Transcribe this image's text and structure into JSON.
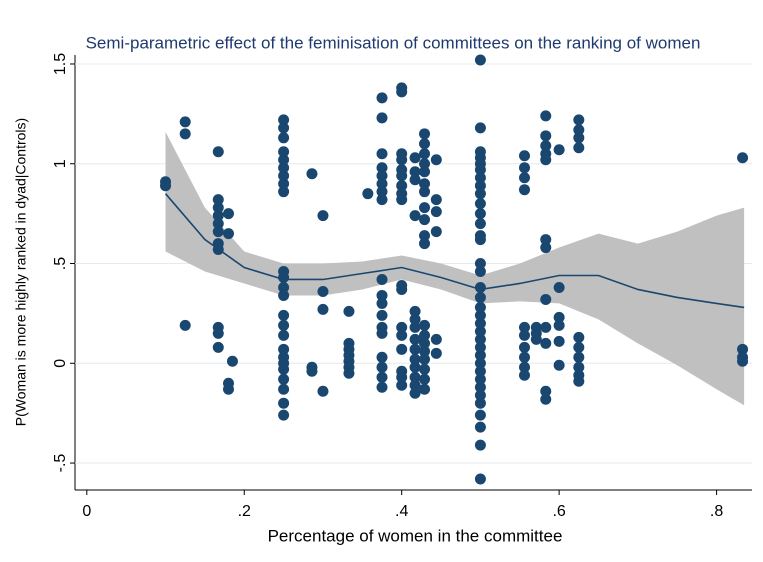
{
  "chart_data": {
    "type": "scatter",
    "title": "Semi-parametric effect of the feminisation of committees on the ranking of women",
    "xlabel": "Percentage of women in the committee",
    "ylabel": "P(Woman is more highly ranked in dyad|Controls)",
    "xlim": [
      -0.015,
      0.845
    ],
    "ylim": [
      -0.635,
      1.545
    ],
    "xticks": [
      {
        "value": 0,
        "label": "0"
      },
      {
        "value": 0.2,
        "label": ".2"
      },
      {
        "value": 0.4,
        "label": ".4"
      },
      {
        "value": 0.6,
        "label": ".6"
      },
      {
        "value": 0.8,
        "label": ".8"
      }
    ],
    "yticks": [
      {
        "value": -0.5,
        "label": "-.5"
      },
      0,
      {
        "value": 0.5,
        "label": ".5"
      },
      1,
      1.5
    ],
    "grid": true,
    "series": [
      {
        "color": "#1a476f",
        "x": [
          0.1,
          0.1,
          0.125,
          0.125,
          0.125,
          0.167,
          0.167,
          0.167,
          0.167,
          0.167,
          0.167,
          0.167,
          0.167,
          0.167,
          0.167,
          0.167,
          0.18,
          0.18,
          0.18,
          0.18,
          0.185,
          0.25,
          0.25,
          0.25,
          0.25,
          0.25,
          0.25,
          0.25,
          0.25,
          0.25,
          0.25,
          0.25,
          0.25,
          0.25,
          0.25,
          0.25,
          0.25,
          0.25,
          0.25,
          0.25,
          0.25,
          0.25,
          0.25,
          0.25,
          0.25,
          0.286,
          0.286,
          0.286,
          0.3,
          0.3,
          0.3,
          0.3,
          0.333,
          0.333,
          0.333,
          0.333,
          0.333,
          0.333,
          0.333,
          0.357,
          0.375,
          0.375,
          0.375,
          0.375,
          0.375,
          0.375,
          0.375,
          0.375,
          0.375,
          0.375,
          0.375,
          0.375,
          0.375,
          0.375,
          0.375,
          0.375,
          0.375,
          0.375,
          0.4,
          0.4,
          0.4,
          0.4,
          0.4,
          0.4,
          0.4,
          0.4,
          0.4,
          0.4,
          0.4,
          0.4,
          0.4,
          0.4,
          0.4,
          0.4,
          0.4,
          0.417,
          0.417,
          0.417,
          0.417,
          0.417,
          0.417,
          0.417,
          0.417,
          0.417,
          0.417,
          0.417,
          0.417,
          0.417,
          0.417,
          0.429,
          0.429,
          0.429,
          0.429,
          0.429,
          0.429,
          0.429,
          0.429,
          0.429,
          0.429,
          0.429,
          0.429,
          0.429,
          0.429,
          0.429,
          0.429,
          0.429,
          0.429,
          0.429,
          0.444,
          0.444,
          0.444,
          0.444,
          0.444,
          0.444,
          0.5,
          0.5,
          0.5,
          0.5,
          0.5,
          0.5,
          0.5,
          0.5,
          0.5,
          0.5,
          0.5,
          0.5,
          0.5,
          0.5,
          0.5,
          0.5,
          0.5,
          0.5,
          0.5,
          0.5,
          0.5,
          0.5,
          0.5,
          0.5,
          0.5,
          0.5,
          0.5,
          0.5,
          0.5,
          0.5,
          0.5,
          0.5,
          0.5,
          0.5,
          0.5,
          0.556,
          0.556,
          0.556,
          0.556,
          0.556,
          0.556,
          0.556,
          0.556,
          0.556,
          0.556,
          0.571,
          0.571,
          0.571,
          0.583,
          0.583,
          0.583,
          0.583,
          0.583,
          0.583,
          0.583,
          0.583,
          0.583,
          0.583,
          0.583,
          0.583,
          0.6,
          0.6,
          0.6,
          0.6,
          0.6,
          0.6,
          0.625,
          0.625,
          0.625,
          0.625,
          0.625,
          0.625,
          0.625,
          0.625,
          0.625,
          0.625,
          0.833,
          0.833,
          0.833,
          0.833
        ],
        "values": [
          0.91,
          0.89,
          1.21,
          1.15,
          0.19,
          1.06,
          0.82,
          0.78,
          0.74,
          0.7,
          0.66,
          0.6,
          0.57,
          0.18,
          0.15,
          0.08,
          0.75,
          0.65,
          -0.1,
          -0.13,
          0.01,
          1.22,
          1.18,
          1.13,
          1.06,
          1.02,
          0.98,
          0.94,
          0.9,
          0.86,
          0.46,
          0.43,
          0.38,
          0.34,
          0.24,
          0.19,
          0.14,
          0.07,
          0.03,
          0.0,
          -0.03,
          -0.08,
          -0.13,
          -0.2,
          -0.26,
          0.95,
          -0.02,
          -0.04,
          0.74,
          0.36,
          0.27,
          -0.14,
          0.26,
          0.1,
          0.07,
          0.04,
          0.01,
          -0.02,
          -0.05,
          0.85,
          1.33,
          1.23,
          1.05,
          0.98,
          0.94,
          0.9,
          0.86,
          0.82,
          0.42,
          0.34,
          0.3,
          0.24,
          0.18,
          0.15,
          0.03,
          -0.02,
          -0.07,
          -0.12,
          1.38,
          1.36,
          1.05,
          1.02,
          0.97,
          0.94,
          0.89,
          0.85,
          0.82,
          0.39,
          0.37,
          0.18,
          0.14,
          0.07,
          -0.04,
          -0.07,
          -0.11,
          1.03,
          0.96,
          0.92,
          0.74,
          0.26,
          0.22,
          0.18,
          0.12,
          0.07,
          0.02,
          -0.02,
          -0.07,
          -0.11,
          -0.15,
          1.15,
          1.1,
          1.05,
          1.0,
          0.96,
          0.9,
          0.86,
          0.78,
          0.72,
          0.64,
          0.6,
          0.19,
          0.14,
          0.1,
          0.06,
          0.02,
          -0.03,
          -0.08,
          -0.13,
          1.02,
          0.82,
          0.76,
          0.66,
          0.12,
          0.05,
          1.52,
          1.18,
          1.06,
          1.03,
          1.0,
          0.97,
          0.93,
          0.89,
          0.85,
          0.8,
          0.75,
          0.7,
          0.64,
          0.62,
          0.5,
          0.46,
          0.38,
          0.33,
          0.28,
          0.24,
          0.2,
          0.16,
          0.12,
          0.08,
          0.04,
          0.0,
          -0.04,
          -0.08,
          -0.12,
          -0.16,
          -0.2,
          -0.26,
          -0.32,
          -0.41,
          -0.58,
          1.04,
          0.98,
          0.93,
          0.87,
          0.18,
          0.14,
          0.08,
          0.03,
          -0.02,
          -0.06,
          0.18,
          0.15,
          0.12,
          1.24,
          1.14,
          1.09,
          1.05,
          1.02,
          0.62,
          0.58,
          0.32,
          0.18,
          0.1,
          -0.14,
          -0.18,
          1.07,
          0.38,
          0.23,
          0.19,
          0.11,
          -0.01,
          1.22,
          1.17,
          1.13,
          1.08,
          0.13,
          0.08,
          0.03,
          -0.02,
          -0.06,
          -0.09,
          1.03,
          0.07,
          0.03,
          0.01
        ]
      }
    ],
    "fit": {
      "color": "#1a476f",
      "x": [
        0.1,
        0.15,
        0.2,
        0.25,
        0.3,
        0.35,
        0.4,
        0.45,
        0.5,
        0.55,
        0.6,
        0.65,
        0.7,
        0.75,
        0.8,
        0.835
      ],
      "values": [
        0.85,
        0.62,
        0.48,
        0.42,
        0.42,
        0.45,
        0.48,
        0.43,
        0.37,
        0.4,
        0.44,
        0.44,
        0.37,
        0.33,
        0.3,
        0.28
      ]
    },
    "band": {
      "color": "#c0c0c0",
      "lower": [
        0.56,
        0.46,
        0.4,
        0.34,
        0.34,
        0.37,
        0.42,
        0.37,
        0.3,
        0.31,
        0.3,
        0.22,
        0.1,
        -0.01,
        -0.13,
        -0.21
      ],
      "upper": [
        1.16,
        0.78,
        0.56,
        0.5,
        0.5,
        0.51,
        0.54,
        0.5,
        0.44,
        0.5,
        0.58,
        0.65,
        0.6,
        0.66,
        0.74,
        0.78
      ]
    }
  }
}
